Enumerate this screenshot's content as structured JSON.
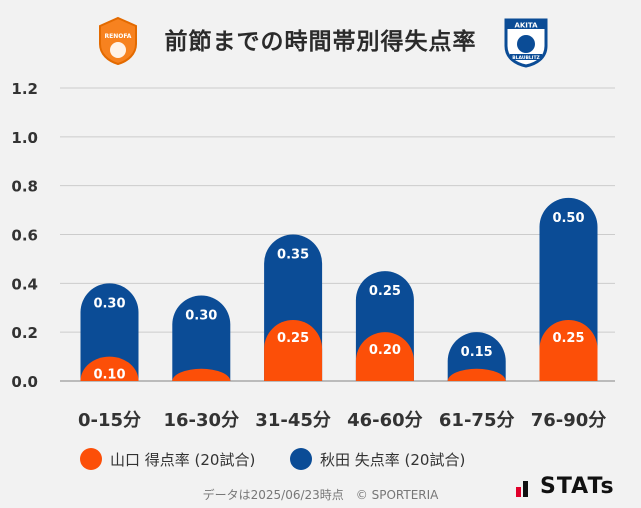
{
  "title": "前節までの時間帯別得失点率",
  "footer": "データは2025/06/23時点　© SPORTERIA",
  "brand": "STATs",
  "logos": {
    "home": {
      "text": "RENOFA",
      "icon": "renofa-yamaguchi-crest-icon"
    },
    "away": {
      "text_top": "AKITA",
      "text_bottom": "BLAUBLITZ",
      "icon": "blaublitz-akita-crest-icon"
    }
  },
  "colors": {
    "home": "#fc4f08",
    "away": "#0b4c96",
    "grid": "#cccccc"
  },
  "legend": [
    {
      "label": "山口 得点率 (20試合)",
      "color": "#fc4f08"
    },
    {
      "label": "秋田 失点率 (20試合)",
      "color": "#0b4c96"
    }
  ],
  "chart_data": {
    "type": "bar",
    "stacked": true,
    "categories": [
      "0-15分",
      "16-30分",
      "31-45分",
      "46-60分",
      "61-75分",
      "76-90分"
    ],
    "series": [
      {
        "name": "山口 得点率 (20試合)",
        "values": [
          0.1,
          0.05,
          0.25,
          0.2,
          0.05,
          0.25
        ],
        "labels": [
          "0.10",
          "",
          "0.25",
          "0.20",
          "",
          "0.25"
        ]
      },
      {
        "name": "秋田 失点率 (20試合)",
        "values": [
          0.3,
          0.3,
          0.35,
          0.25,
          0.15,
          0.5
        ],
        "labels": [
          "0.30",
          "0.30",
          "0.35",
          "0.25",
          "0.15",
          "0.50"
        ]
      }
    ],
    "yticks": [
      "0.0",
      "0.2",
      "0.4",
      "0.6",
      "0.8",
      "1.0",
      "1.2"
    ],
    "ylim": [
      0,
      1.2
    ],
    "grid": true,
    "legend_position": "bottom"
  }
}
